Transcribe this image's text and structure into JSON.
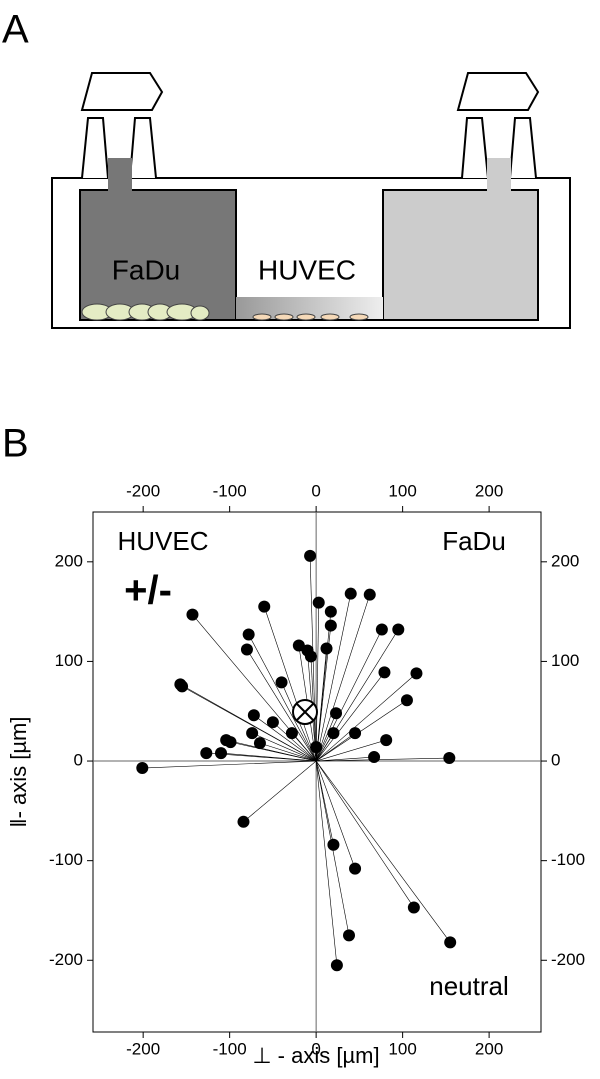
{
  "panel_a": {
    "label": "A",
    "left_chamber": "FaDu",
    "middle_chamber": "HUVEC"
  },
  "chart_data": {
    "type": "scatter",
    "panel_label": "B",
    "x": [
      -7,
      3,
      17,
      17,
      40,
      62,
      76,
      95,
      -60,
      -78,
      -80,
      -143,
      -157,
      -155,
      -201,
      -127,
      -110,
      -104,
      -99,
      -65,
      -72,
      -50,
      -74,
      -40,
      -20,
      -10,
      -6,
      12,
      -28,
      0,
      20,
      23,
      45,
      79,
      116,
      105,
      81,
      67,
      154,
      -84,
      20,
      45,
      38,
      24,
      113,
      155
    ],
    "y": [
      206,
      159,
      150,
      136,
      168,
      167,
      132,
      132,
      155,
      127,
      112,
      147,
      77,
      75,
      -7,
      8,
      8,
      21,
      19,
      18,
      46,
      39,
      28,
      79,
      116,
      111,
      105,
      113,
      28,
      14,
      28,
      48,
      28,
      89,
      88,
      61,
      21,
      4,
      3,
      -61,
      -84,
      -108,
      -175,
      -205,
      -147,
      -182
    ],
    "xlim": [
      -258,
      260
    ],
    "ylim": [
      -272,
      250
    ],
    "xticks": [
      -200,
      -100,
      0,
      100,
      200
    ],
    "yticks": [
      -200,
      -100,
      0,
      100,
      200
    ],
    "xlabel": "⊥ - axis [µm]",
    "ylabel": "‖- axis [µm]",
    "annotations": [
      "HUVEC",
      "FaDu",
      "+/-",
      "neutral"
    ],
    "color": "#000000"
  }
}
